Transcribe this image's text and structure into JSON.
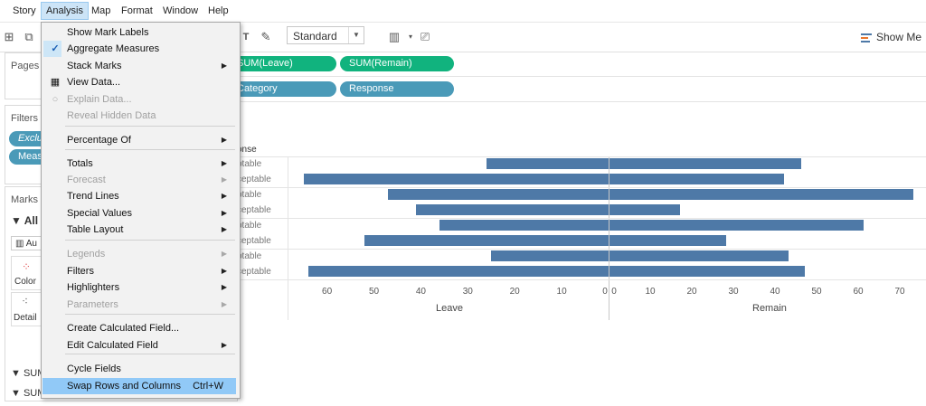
{
  "menubar": {
    "items": [
      "Story",
      "Analysis",
      "Map",
      "Format",
      "Window",
      "Help"
    ],
    "active": "Analysis"
  },
  "toolbar": {
    "fit_value": "Standard",
    "show_me": "Show Me"
  },
  "panes": {
    "pages": "Pages",
    "filters": "Filters",
    "filter_pills": [
      "Exclu",
      "Meas"
    ],
    "marks": "Marks",
    "marks_all": "All",
    "marks_type": "Au",
    "color": "Color",
    "detail": "Detail",
    "bottom_pills": [
      "SUM",
      "SUM(Remain..."
    ]
  },
  "shelves": {
    "columns": [
      "SUM(Leave)",
      "SUM(Remain)"
    ],
    "rows": [
      "Category",
      "Response"
    ]
  },
  "menu": {
    "items": [
      {
        "label": "Show Mark Labels"
      },
      {
        "label": "Aggregate Measures",
        "checked": true
      },
      {
        "label": "Stack Marks",
        "submenu": true
      },
      {
        "label": "View Data...",
        "icon": "table-icon"
      },
      {
        "label": "Explain Data...",
        "disabled": true,
        "icon": "lightbulb-icon"
      },
      {
        "label": "Reveal Hidden Data",
        "disabled": true
      },
      {
        "label": "Percentage Of",
        "submenu": true
      },
      {
        "label": "Totals",
        "submenu": true
      },
      {
        "label": "Forecast",
        "submenu": true,
        "disabled": true
      },
      {
        "label": "Trend Lines",
        "submenu": true
      },
      {
        "label": "Special Values",
        "submenu": true
      },
      {
        "label": "Table Layout",
        "submenu": true
      },
      {
        "label": "Legends",
        "submenu": true,
        "disabled": true
      },
      {
        "label": "Filters",
        "submenu": true
      },
      {
        "label": "Highlighters",
        "submenu": true
      },
      {
        "label": "Parameters",
        "submenu": true,
        "disabled": true
      },
      {
        "label": "Create Calculated Field..."
      },
      {
        "label": "Edit Calculated Field",
        "submenu": true
      },
      {
        "label": "Cycle Fields"
      },
      {
        "label": "Swap Rows and Columns",
        "shortcut": "Ctrl+W",
        "highlighted": true
      }
    ]
  },
  "chart_data": {
    "type": "bar",
    "header": "onse",
    "row_labels": [
      "ptable",
      "ceptable",
      "ptable",
      "ceptable",
      "ptable",
      "ceptable",
      "ptable",
      "ceptable"
    ],
    "series": [
      {
        "name": "Leave",
        "values": [
          26,
          65,
          47,
          41,
          36,
          52,
          25,
          64
        ]
      },
      {
        "name": "Remain",
        "values": [
          46,
          42,
          73,
          17,
          61,
          28,
          43,
          47
        ]
      }
    ],
    "leave_axis": {
      "title": "Leave",
      "ticks": [
        60,
        50,
        40,
        30,
        20,
        10,
        0
      ]
    },
    "remain_axis": {
      "title": "Remain",
      "ticks": [
        0,
        10,
        20,
        30,
        40,
        50,
        60,
        70
      ]
    },
    "bar_color": "#4e79a7"
  }
}
